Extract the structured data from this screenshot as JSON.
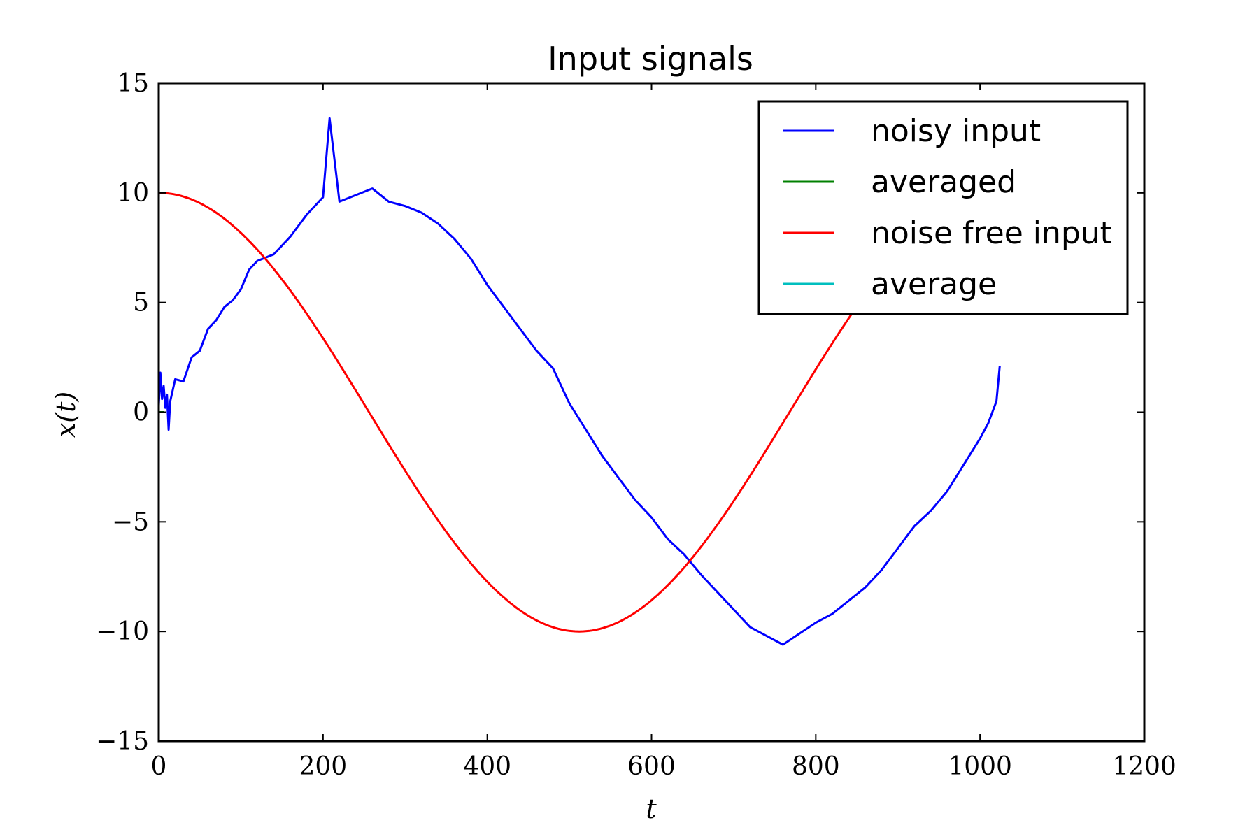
{
  "chart_data": {
    "type": "line",
    "title": "Input signals",
    "xlabel": "t",
    "ylabel": "x(t)",
    "xlim": [
      0,
      1200
    ],
    "ylim": [
      -15,
      15
    ],
    "xticks": [
      0,
      200,
      400,
      600,
      800,
      1000,
      1200
    ],
    "yticks": [
      -15,
      -10,
      -5,
      0,
      5,
      10,
      15
    ],
    "xtick_labels": [
      "0",
      "200",
      "400",
      "600",
      "800",
      "1000",
      "1200"
    ],
    "ytick_labels": [
      "−15",
      "−10",
      "−5",
      "0",
      "5",
      "10",
      "15"
    ],
    "grid": false,
    "legend_position": "upper-right",
    "series": [
      {
        "name": "noisy input",
        "color": "#0000ff",
        "x": [
          0,
          2,
          4,
          6,
          8,
          10,
          12,
          14,
          20,
          30,
          40,
          50,
          60,
          70,
          80,
          90,
          100,
          110,
          120,
          140,
          160,
          180,
          200,
          208,
          220,
          240,
          260,
          280,
          300,
          320,
          340,
          360,
          380,
          400,
          420,
          440,
          460,
          480,
          500,
          520,
          540,
          560,
          580,
          600,
          620,
          640,
          660,
          680,
          700,
          720,
          740,
          760,
          780,
          800,
          820,
          840,
          860,
          880,
          900,
          920,
          940,
          960,
          980,
          1000,
          1010,
          1020,
          1024
        ],
        "y": [
          0.3,
          1.8,
          0.6,
          1.2,
          0.2,
          0.8,
          -0.8,
          0.5,
          1.5,
          1.4,
          2.5,
          2.8,
          3.8,
          4.2,
          4.8,
          5.1,
          5.6,
          6.5,
          6.9,
          7.2,
          8.0,
          9.0,
          9.8,
          13.4,
          9.6,
          9.9,
          10.2,
          9.6,
          9.4,
          9.1,
          8.6,
          7.9,
          7.0,
          5.8,
          4.8,
          3.8,
          2.8,
          2.0,
          0.4,
          -0.8,
          -2.0,
          -3.0,
          -4.0,
          -4.8,
          -5.8,
          -6.5,
          -7.4,
          -8.2,
          -9.0,
          -9.8,
          -10.2,
          -10.6,
          -10.1,
          -9.6,
          -9.2,
          -8.6,
          -8.0,
          -7.2,
          -6.2,
          -5.2,
          -4.5,
          -3.6,
          -2.4,
          -1.2,
          -0.5,
          0.5,
          2.1
        ]
      },
      {
        "name": "averaged",
        "color": "#008000",
        "x": [
          0,
          6
        ],
        "y": [
          0,
          0
        ]
      },
      {
        "name": "noise free input",
        "color": "#ff0000",
        "x": [
          0,
          1024
        ],
        "y": [
          10,
          10
        ],
        "function": "cosine",
        "amplitude": 10,
        "period": 1024
      },
      {
        "name": "average",
        "color": "#00bfbf",
        "x": [],
        "y": []
      }
    ]
  }
}
